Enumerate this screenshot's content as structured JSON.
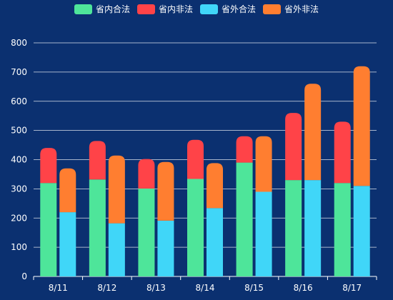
{
  "chart_data": {
    "type": "bar",
    "stacked": true,
    "categories": [
      "8/11",
      "8/12",
      "8/13",
      "8/14",
      "8/15",
      "8/16",
      "8/17"
    ],
    "ylim": [
      0,
      800
    ],
    "yticks": [
      0,
      100,
      200,
      300,
      400,
      500,
      600,
      700,
      800
    ],
    "grid": true,
    "legend_position": "top-center",
    "stacks": [
      {
        "name": "省内",
        "series": [
          {
            "name": "省内合法",
            "color": "#4ee59a",
            "values": [
              320,
              332,
              301,
              334,
              390,
              330,
              320
            ]
          },
          {
            "name": "省内非法",
            "color": "#ff4348",
            "values": [
              120,
              132,
              101,
              134,
              90,
              230,
              210
            ]
          }
        ]
      },
      {
        "name": "省外",
        "series": [
          {
            "name": "省外合法",
            "color": "#40d6f8",
            "values": [
              220,
              182,
              191,
              234,
              290,
              330,
              310
            ]
          },
          {
            "name": "省外非法",
            "color": "#ff7e30",
            "values": [
              150,
              232,
              201,
              154,
              190,
              330,
              410
            ]
          }
        ]
      }
    ]
  }
}
